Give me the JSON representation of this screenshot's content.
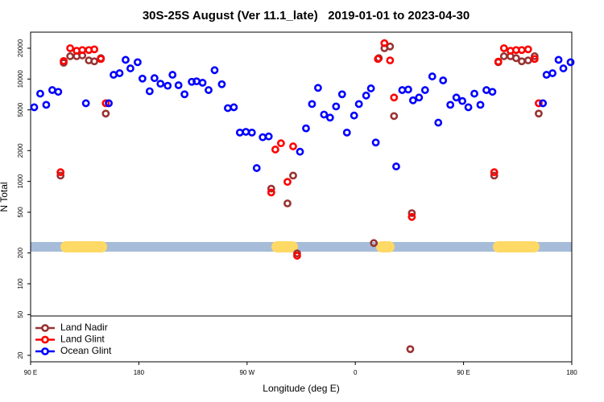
{
  "chart_data": {
    "type": "scatter",
    "title": "30S-25S August (Ver 11.1_late)   2019-01-01 to 2023-04-30",
    "x_label": "Longitude (deg E)",
    "y_label": "N Total",
    "xlim": [
      90,
      540
    ],
    "xticks": [
      {
        "value": 90,
        "label": "90 E"
      },
      {
        "value": 180,
        "label": "180"
      },
      {
        "value": 270,
        "label": "90 W"
      },
      {
        "value": 360,
        "label": "0"
      },
      {
        "value": 450,
        "label": "90 E"
      },
      {
        "value": 540,
        "label": "180"
      }
    ],
    "ylim": [
      17.3,
      28700
    ],
    "y_log": true,
    "yticks": [
      20,
      50,
      100,
      200,
      500,
      1000,
      2000,
      5000,
      10000,
      20000
    ],
    "legend_position": "lower left",
    "series": [
      {
        "name": "Land Nadir",
        "color": "#993333",
        "x": [
          117.5,
          122.9,
          128.3,
          133,
          138.4,
          143,
          148.4,
          152.5,
          114.9,
          290.1,
          303.6,
          308.3,
          311.6,
          375.4,
          379.5,
          384.2,
          388.9,
          392.2,
          407,
          405.7,
          478.9,
          483.6,
          489,
          493.7,
          498.4,
          503.7,
          509.1,
          512.5,
          475.5
        ],
        "values": [
          14400,
          16700,
          16700,
          17000,
          15200,
          14900,
          16000,
          4600,
          1140,
          850,
          610,
          1140,
          198,
          250,
          16000,
          20000,
          20800,
          4350,
          490,
          23,
          14600,
          16700,
          16700,
          16000,
          14900,
          15200,
          16700,
          4600,
          1140
        ]
      },
      {
        "name": "Land Glint",
        "color": "#ff0000",
        "x": [
          117.5,
          122.9,
          128.3,
          133,
          138.4,
          143,
          148.4,
          152.5,
          114.9,
          290.1,
          293.5,
          298.2,
          303.6,
          308.3,
          311.6,
          378.8,
          384.2,
          388.9,
          392.2,
          407,
          478.9,
          483.6,
          489,
          493.7,
          498.4,
          503.7,
          509.1,
          512.5,
          475.5
        ],
        "values": [
          15000,
          20000,
          18900,
          19200,
          19200,
          19500,
          15700,
          5800,
          1230,
          780,
          2050,
          2360,
          990,
          2200,
          188,
          15700,
          22400,
          15200,
          6600,
          450,
          14800,
          20000,
          18900,
          19200,
          19200,
          19500,
          15700,
          5800,
          1230
        ]
      },
      {
        "name": "Ocean Glint",
        "color": "#0000ff",
        "x": [
          93,
          98,
          103,
          108,
          113,
          136,
          155,
          159,
          164,
          169,
          173,
          179,
          183,
          189,
          193,
          198,
          204,
          208,
          213,
          218,
          224,
          228,
          233,
          238,
          243,
          249,
          254,
          259,
          264,
          269,
          274,
          278,
          283,
          288,
          314,
          319,
          324,
          329,
          334,
          339,
          344,
          349,
          353,
          359,
          363,
          369,
          373,
          377,
          394,
          399,
          404,
          408,
          413,
          418,
          424,
          429,
          433,
          439,
          444,
          449,
          454,
          459,
          464,
          469,
          474,
          516,
          519,
          524,
          529,
          533,
          539
        ],
        "values": [
          5300,
          7200,
          5600,
          7800,
          7500,
          5800,
          5800,
          11000,
          11400,
          15400,
          12700,
          14600,
          10100,
          7600,
          10200,
          9000,
          8600,
          11000,
          8700,
          7100,
          9400,
          9500,
          9200,
          7800,
          12200,
          8900,
          5200,
          5300,
          3000,
          3050,
          3000,
          1350,
          2700,
          2750,
          1950,
          3300,
          5700,
          8200,
          4500,
          4200,
          5400,
          7100,
          3000,
          4400,
          5700,
          6900,
          8100,
          2400,
          1400,
          7800,
          7900,
          6200,
          6600,
          7800,
          10600,
          3750,
          9700,
          5600,
          6600,
          6100,
          5300,
          7200,
          5600,
          7800,
          7500,
          5800,
          11000,
          11400,
          15400,
          12700,
          14600
        ]
      }
    ]
  }
}
